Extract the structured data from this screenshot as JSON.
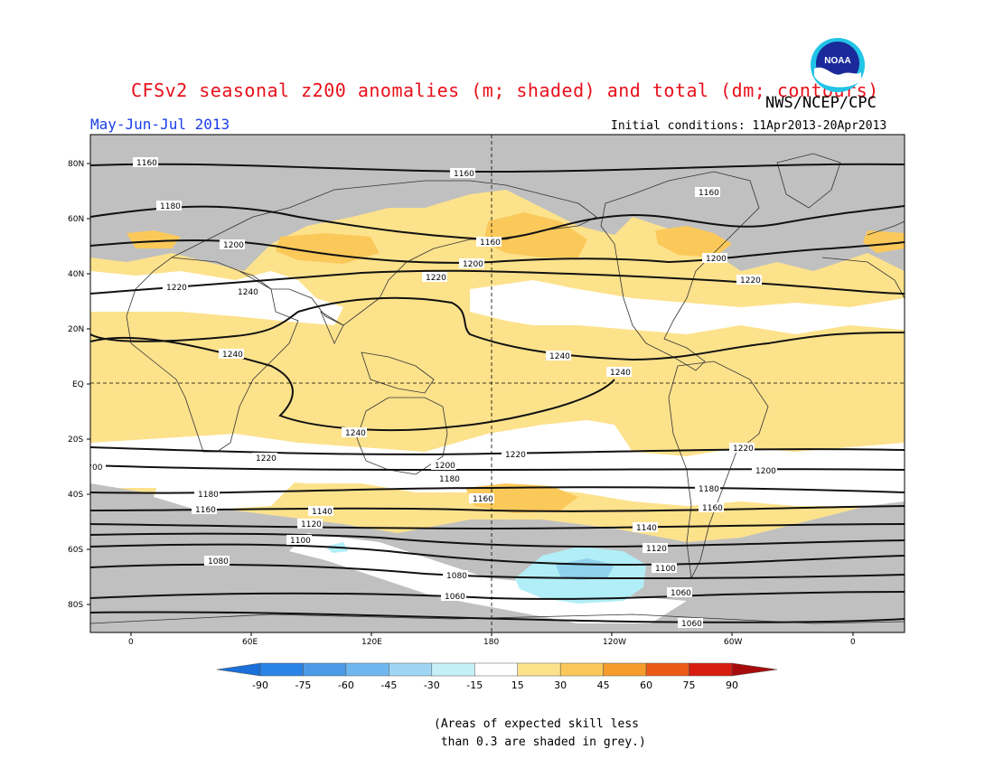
{
  "title": "CFSv2 seasonal z200 anomalies (m; shaded) and total (dm; contours)",
  "agency": "NWS/NCEP/CPC",
  "logo_text": "NOAA",
  "period": "May-Jun-Jul 2013",
  "initial_conditions": "Initial conditions: 11Apr2013-20Apr2013",
  "lat_labels": [
    "80N",
    "60N",
    "40N",
    "20N",
    "EQ",
    "20S",
    "40S",
    "60S",
    "80S"
  ],
  "lon_labels": [
    "0",
    "60E",
    "120E",
    "180",
    "120W",
    "60W",
    "0"
  ],
  "contour_labels": [
    "1160",
    "1160",
    "1160",
    "1160",
    "1180",
    "1200",
    "1200",
    "1200",
    "1220",
    "1220",
    "1220",
    "1240",
    "1240",
    "1240",
    "1240",
    "1240",
    "1220",
    "1220",
    "1220",
    "00",
    "1200",
    "1200",
    "1180",
    "1180",
    "1180",
    "1160",
    "1160",
    "1160",
    "1140",
    "1140",
    "1120",
    "1120",
    "1100",
    "1100",
    "1080",
    "1080",
    "1060",
    "1060",
    "1060"
  ],
  "colorbar": {
    "labels": [
      "-90",
      "-75",
      "-60",
      "-45",
      "-30",
      "-15",
      "15",
      "30",
      "45",
      "60",
      "75",
      "90"
    ],
    "colors": [
      "#1a6fd8",
      "#2a83e6",
      "#4c9be8",
      "#70b7ef",
      "#9fd6f3",
      "#c6f0f7",
      "#ffffff",
      "#fde28c",
      "#fbc95a",
      "#f59c2c",
      "#ec5a18",
      "#d81d10",
      "#a70c0c"
    ]
  },
  "note": "(Areas of expected skill less\n than 0.3 are shaded in grey.)",
  "map_colors": {
    "grey": "#c0c0c0",
    "yellow": "#fde28c",
    "orange": "#fbc95a",
    "light_blue": "#b2eef7",
    "mid_blue": "#8fd2ee"
  }
}
